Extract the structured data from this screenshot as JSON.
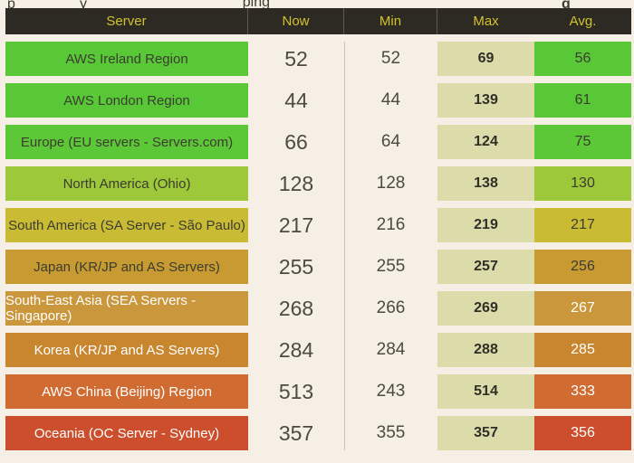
{
  "top_strip": {
    "fragments": {
      "frag1": "p",
      "frag2": "y",
      "link1": "ping",
      "link2": "",
      "heading_frag": "g"
    },
    "link_color": "#5e2170"
  },
  "table": {
    "columns": [
      "Server",
      "Now",
      "Min",
      "Max",
      "Avg."
    ],
    "rows": [
      {
        "server": "AWS Ireland Region",
        "now": "52",
        "min": "52",
        "max": "69",
        "avg": "56",
        "color": "#58c837",
        "text": "dark"
      },
      {
        "server": "AWS London Region",
        "now": "44",
        "min": "44",
        "max": "139",
        "avg": "61",
        "color": "#58c837",
        "text": "dark"
      },
      {
        "server": "Europe (EU servers - Servers.com)",
        "now": "66",
        "min": "64",
        "max": "124",
        "avg": "75",
        "color": "#5cc837",
        "text": "dark"
      },
      {
        "server": "North America (Ohio)",
        "now": "128",
        "min": "128",
        "max": "138",
        "avg": "130",
        "color": "#9cc83a",
        "text": "dark"
      },
      {
        "server": "South America (SA Server - São Paulo)",
        "now": "217",
        "min": "216",
        "max": "219",
        "avg": "217",
        "color": "#c9bc34",
        "text": "dark"
      },
      {
        "server": "Japan (KR/JP and AS Servers)",
        "now": "255",
        "min": "255",
        "max": "257",
        "avg": "256",
        "color": "#c79b31",
        "text": "dark"
      },
      {
        "server": "South-East Asia (SEA Servers - Singapore)",
        "now": "268",
        "min": "266",
        "max": "269",
        "avg": "267",
        "color": "#cb973c",
        "text": "light"
      },
      {
        "server": "Korea (KR/JP and AS Servers)",
        "now": "284",
        "min": "284",
        "max": "288",
        "avg": "285",
        "color": "#c8862f",
        "text": "light"
      },
      {
        "server": "AWS China (Beijing) Region",
        "now": "513",
        "min": "243",
        "max": "514",
        "avg": "333",
        "color": "#d06c31",
        "text": "light"
      },
      {
        "server": "Oceania (OC Server - Sydney)",
        "now": "357",
        "min": "355",
        "max": "357",
        "avg": "356",
        "color": "#cc4e2c",
        "text": "light"
      }
    ],
    "palette": {
      "page_bg": "#f5efe6",
      "header_bg": "#2d2a24",
      "header_text": "#d2c22d",
      "max_cell_bg": "#dcdcab",
      "dark_text": "#3c3c31",
      "light_text": "#ffffff"
    }
  }
}
